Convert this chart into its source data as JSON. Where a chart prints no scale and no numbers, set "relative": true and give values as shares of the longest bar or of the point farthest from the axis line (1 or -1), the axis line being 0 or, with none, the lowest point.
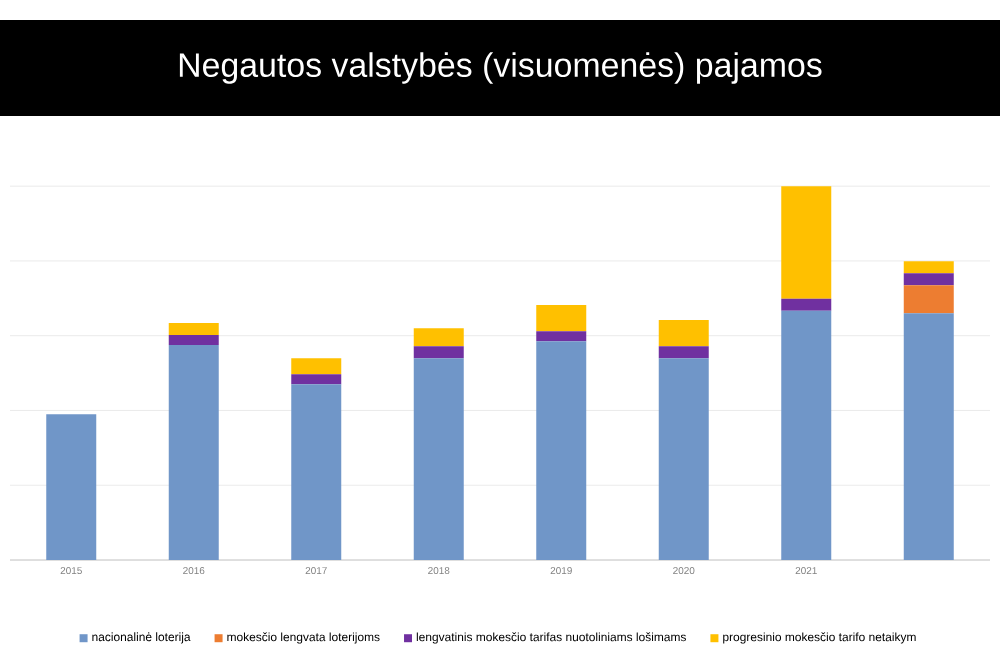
{
  "chart_data": {
    "type": "bar",
    "title": "Negautos valstybės (visuomenės) pajamos",
    "stacked": true,
    "relative": true,
    "grid": "y",
    "legend": "bottom",
    "categories": [
      "2015",
      "2016",
      "2017",
      "2018",
      "2019",
      "2020",
      "2021",
      null
    ],
    "series": [
      {
        "name": "nacionalinė loterija",
        "color": "#7096c8",
        "values": [
          0.39,
          0.575,
          0.47,
          0.54,
          0.585,
          0.54,
          0.667,
          0.66
        ]
      },
      {
        "name": "mokesčio lengvata loterijoms",
        "color": "#ed7d31",
        "values": [
          0,
          0,
          0,
          0,
          0,
          0,
          0,
          0.075
        ]
      },
      {
        "name": "lengvatinis mokesčio tarifas nuotoliniams lošimams",
        "color": "#7030a0",
        "values": [
          0,
          0.027,
          0.027,
          0.032,
          0.027,
          0.032,
          0.032,
          0.032
        ]
      },
      {
        "name": "progresinio mokesčio tarifo netaikym",
        "color": "#ffc000",
        "values": [
          0,
          0.032,
          0.043,
          0.048,
          0.07,
          0.07,
          0.301,
          0.032
        ]
      }
    ]
  }
}
